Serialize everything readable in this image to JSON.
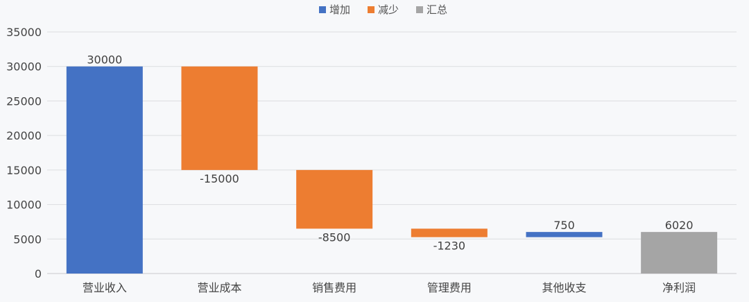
{
  "chart_data": {
    "type": "bar",
    "subtype": "waterfall",
    "categories": [
      "营业收入",
      "营业成本",
      "销售费用",
      "管理费用",
      "其他收支",
      "净利润"
    ],
    "values": [
      30000,
      -15000,
      -8500,
      -1230,
      750,
      6020
    ],
    "value_labels": [
      "30000",
      "-15000",
      "-8500",
      "-1230",
      "750",
      "6020"
    ],
    "kinds": [
      "increase",
      "decrease",
      "decrease",
      "decrease",
      "increase",
      "total"
    ],
    "legend": [
      {
        "key": "increase",
        "name": "增加",
        "color": "#4472c4"
      },
      {
        "key": "decrease",
        "name": "减少",
        "color": "#ed7d31"
      },
      {
        "key": "total",
        "name": "汇总",
        "color": "#a5a5a5"
      }
    ],
    "ylim": [
      0,
      35000
    ],
    "yticks": [
      0,
      5000,
      10000,
      15000,
      20000,
      25000,
      30000,
      35000
    ],
    "ytick_labels": [
      "0",
      "5000",
      "10000",
      "15000",
      "20000",
      "25000",
      "30000",
      "35000"
    ],
    "grid": true,
    "legend_position": "top-center",
    "title": "",
    "xlabel": "",
    "ylabel": ""
  }
}
